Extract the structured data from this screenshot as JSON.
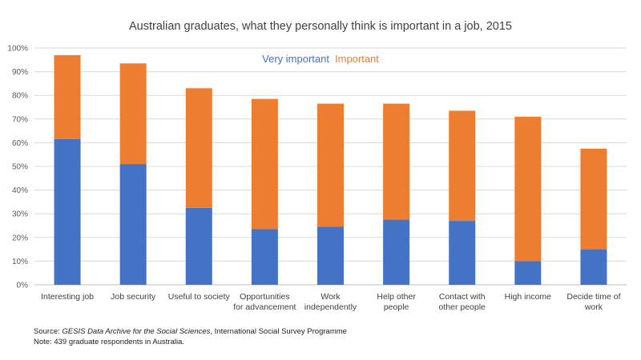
{
  "chart_data": {
    "type": "bar",
    "stacked": true,
    "title": "Australian graduates, what they personally think is important in a job, 2015",
    "xlabel": "",
    "ylabel": "",
    "ylim": [
      0,
      100
    ],
    "y_ticks": [
      "0%",
      "10%",
      "20%",
      "30%",
      "40%",
      "50%",
      "60%",
      "70%",
      "80%",
      "90%",
      "100%"
    ],
    "grid": true,
    "legend_position": "top-center",
    "categories": [
      [
        "Interesting job"
      ],
      [
        "Job security"
      ],
      [
        "Useful to society"
      ],
      [
        "Opportunities",
        "for advancement"
      ],
      [
        "Work",
        "independently"
      ],
      [
        "Help other",
        "people"
      ],
      [
        "Contact with",
        "other people"
      ],
      [
        "High income"
      ],
      [
        "Decide time of",
        "work"
      ]
    ],
    "series": [
      {
        "name": "Very important",
        "color": "#4472C4",
        "values": [
          61.5,
          51,
          32.5,
          23.5,
          24.5,
          27.5,
          27,
          10,
          15
        ]
      },
      {
        "name": "Important",
        "color": "#ED7D31",
        "values": [
          35.5,
          42.5,
          50.5,
          55,
          52,
          49,
          46.5,
          61,
          42.5
        ]
      }
    ]
  },
  "footnotes": {
    "source_prefix": "Source: ",
    "source_italic": "GESIS Data Archive for the Social Sciences",
    "source_suffix": ", International Social Survey Programme",
    "note": "Note: 439 graduate respondents in Australia."
  }
}
